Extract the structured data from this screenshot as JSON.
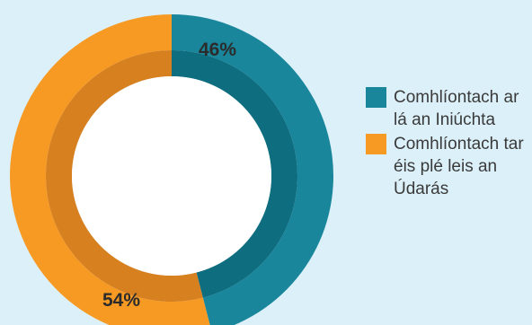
{
  "chart_data": {
    "type": "pie",
    "variant": "donut",
    "categories": [
      "Comhlíontach ar lá an Iniúchta",
      "Comhlíontach tar éis plé leis an Údarás"
    ],
    "values": [
      46,
      54
    ],
    "value_labels": [
      "46%",
      "54%"
    ],
    "colors": [
      "#19869c",
      "#f79a24"
    ],
    "inner_ring_colors": [
      "#0f6d80",
      "#d7801f"
    ],
    "legend_position": "right"
  },
  "legend": [
    {
      "label": "Comhlíontach ar lá an Iniúchta",
      "color": "#19869c"
    },
    {
      "label": "Comhlíontach tar éis plé leis an Údarás",
      "color": "#f79a24"
    }
  ],
  "colors": {
    "background": "#dcf0f9",
    "hole": "#ffffff"
  }
}
